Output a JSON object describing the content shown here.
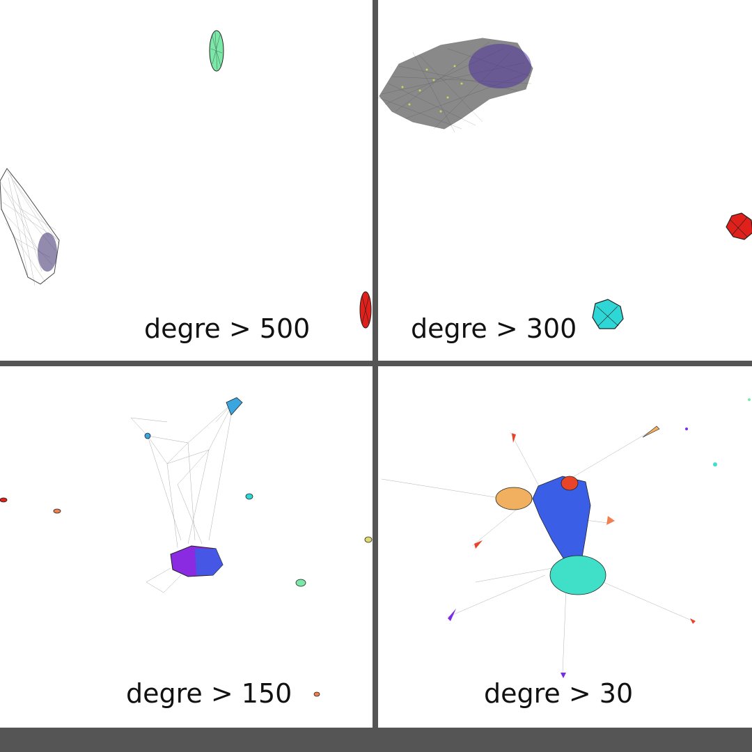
{
  "panels": [
    {
      "caption": "degre > 500",
      "clusters": [
        {
          "name": "cluster-green",
          "color": "#7be8a8"
        },
        {
          "name": "cluster-purple-grey",
          "color": "#6b3fd8"
        },
        {
          "name": "cluster-red",
          "color": "#e0201a"
        }
      ]
    },
    {
      "caption": "degre > 300",
      "clusters": [
        {
          "name": "cluster-yellow-purple",
          "color": "#c8d85a"
        },
        {
          "name": "cluster-red",
          "color": "#e0201a"
        },
        {
          "name": "cluster-cyan",
          "color": "#2fd6d6"
        }
      ]
    },
    {
      "caption": "degre > 150",
      "clusters": [
        {
          "name": "cluster-violet-blue",
          "color": "#8a2be2"
        },
        {
          "name": "cluster-light-blue",
          "color": "#3aa6e0"
        },
        {
          "name": "cluster-green",
          "color": "#7be8a8"
        },
        {
          "name": "cluster-cyan",
          "color": "#2fd6d6"
        },
        {
          "name": "cluster-orange",
          "color": "#f08050"
        }
      ]
    },
    {
      "caption": "degre > 30",
      "clusters": [
        {
          "name": "cluster-blue",
          "color": "#3a5fe6"
        },
        {
          "name": "cluster-turquoise",
          "color": "#40e0c8"
        },
        {
          "name": "cluster-tan",
          "color": "#f0b060"
        },
        {
          "name": "cluster-red",
          "color": "#e8442a"
        },
        {
          "name": "cluster-violet",
          "color": "#7a2be2"
        }
      ]
    }
  ]
}
